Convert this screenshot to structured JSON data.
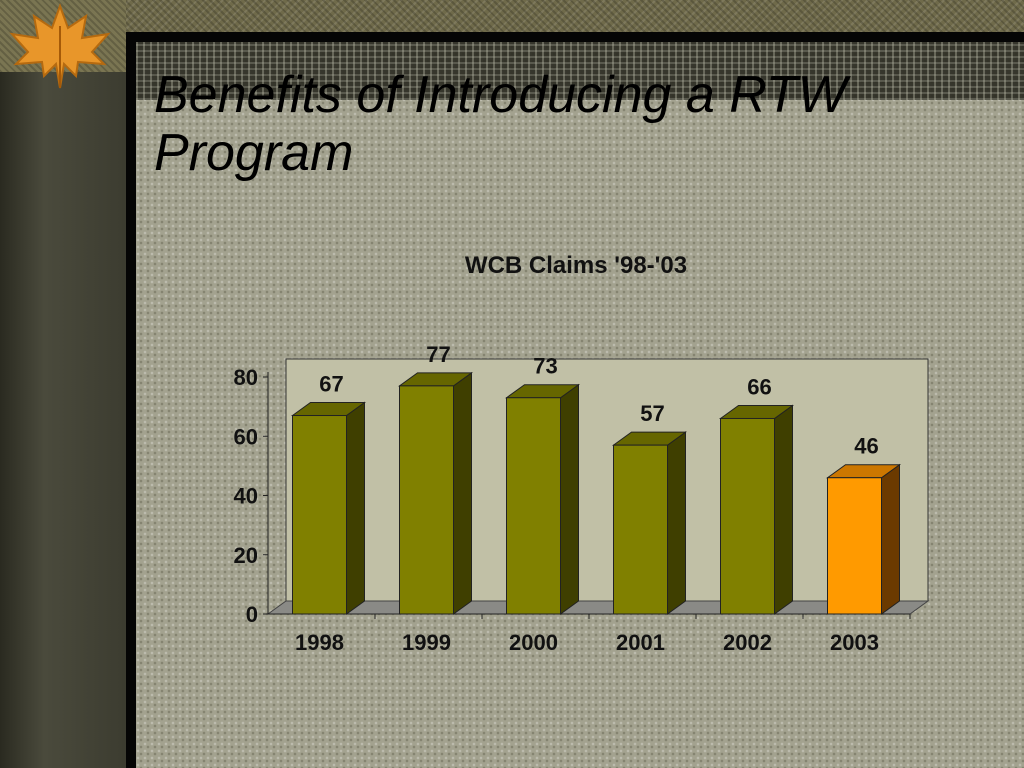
{
  "slide": {
    "title_line1": "Benefits of Introducing a RTW",
    "title_line2": "Program"
  },
  "colors": {
    "bar_face": "#808000",
    "bar_side": "#3f3f00",
    "bar_top": "#666600",
    "highlight_face": "#ff9a00",
    "highlight_side": "#6b3a00",
    "highlight_top": "#cc7700",
    "back_wall": "#c1c0a6",
    "floor": "#8a8a86"
  },
  "chart_data": {
    "type": "bar",
    "title": "WCB Claims '98-'03",
    "categories": [
      "1998",
      "1999",
      "2000",
      "2001",
      "2002",
      "2003"
    ],
    "values": [
      67,
      77,
      73,
      57,
      66,
      46
    ],
    "data_labels": [
      "67",
      "77",
      "73",
      "57",
      "66",
      "46"
    ],
    "highlight_index": 5,
    "xlabel": "",
    "ylabel": "",
    "ylim": [
      0,
      80
    ],
    "yticks": [
      0,
      20,
      40,
      60,
      80
    ],
    "ytick_labels": [
      "0",
      "20",
      "40",
      "60",
      "80"
    ],
    "grid": false,
    "legend": "none",
    "style": "3d-column"
  }
}
